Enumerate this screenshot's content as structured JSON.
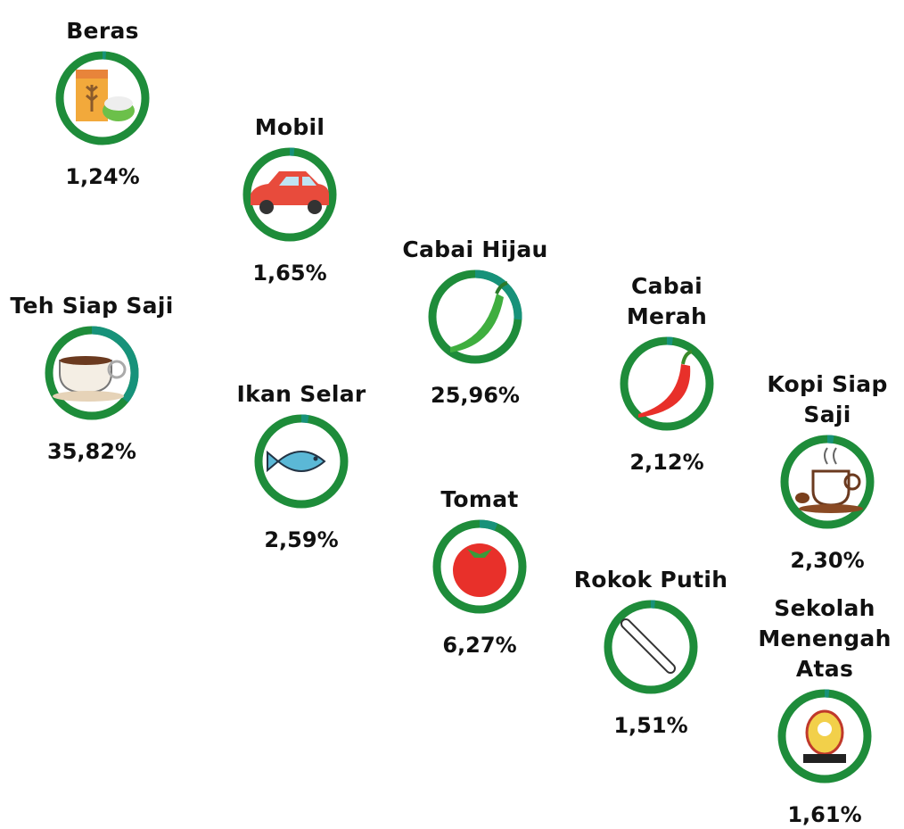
{
  "chart_data": {
    "type": "icon-rings",
    "categories": [
      "Beras",
      "Mobil",
      "Cabai Hijau",
      "Cabai Merah",
      "Kopi Siap Saji",
      "Teh Siap Saji",
      "Ikan Selar",
      "Tomat",
      "Rokok Putih",
      "Sekolah Menengah Atas"
    ],
    "values": [
      1.24,
      1.65,
      25.96,
      2.12,
      2.3,
      35.82,
      2.59,
      6.27,
      1.51,
      1.61
    ],
    "value_labels": [
      "1,24%",
      "1,65%",
      "25,96%",
      "2,12%",
      "2,30%",
      "35,82%",
      "2,59%",
      "6,27%",
      "1,51%",
      "1,61%"
    ],
    "colors": [
      "#1e8c3a",
      "#17927a"
    ]
  }
}
